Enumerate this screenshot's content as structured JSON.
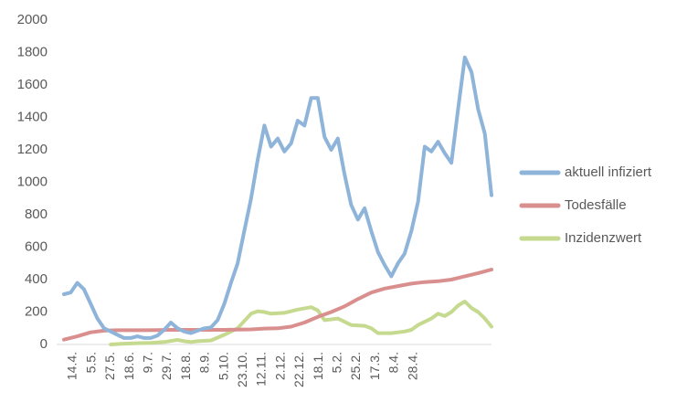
{
  "chart_data": {
    "type": "line",
    "ylim": [
      0,
      2000
    ],
    "yticks": [
      0,
      200,
      400,
      600,
      800,
      1000,
      1200,
      1400,
      1600,
      1800,
      2000
    ],
    "grid": false,
    "legend_position": "right",
    "x_tick_labels": [
      "14.4.",
      "5.5.",
      "27.5.",
      "18.6.",
      "9.7.",
      "29.7.",
      "18.8.",
      "8.9.",
      "5.10.",
      "23.10.",
      "12.11.",
      "2.12.",
      "22.12.",
      "18.1.",
      "5.2.",
      "25.2.",
      "17.3.",
      "8.4.",
      "28.4."
    ],
    "series": [
      {
        "name": "aktuell infiziert",
        "color": "#8fb4d9",
        "points": [
          [
            0,
            310
          ],
          [
            1,
            320
          ],
          [
            2,
            380
          ],
          [
            3,
            340
          ],
          [
            4,
            250
          ],
          [
            5,
            160
          ],
          [
            6,
            100
          ],
          [
            7,
            80
          ],
          [
            8,
            60
          ],
          [
            9,
            40
          ],
          [
            10,
            40
          ],
          [
            11,
            50
          ],
          [
            12,
            40
          ],
          [
            13,
            40
          ],
          [
            14,
            55
          ],
          [
            15,
            90
          ],
          [
            16,
            135
          ],
          [
            17,
            100
          ],
          [
            18,
            80
          ],
          [
            19,
            70
          ],
          [
            20,
            85
          ],
          [
            21,
            100
          ],
          [
            22,
            105
          ],
          [
            23,
            150
          ],
          [
            24,
            250
          ],
          [
            25,
            380
          ],
          [
            26,
            500
          ],
          [
            27,
            700
          ],
          [
            28,
            900
          ],
          [
            29,
            1140
          ],
          [
            30,
            1350
          ],
          [
            31,
            1220
          ],
          [
            32,
            1270
          ],
          [
            33,
            1190
          ],
          [
            34,
            1240
          ],
          [
            35,
            1380
          ],
          [
            36,
            1350
          ],
          [
            37,
            1520
          ],
          [
            38,
            1520
          ],
          [
            39,
            1280
          ],
          [
            40,
            1200
          ],
          [
            41,
            1270
          ],
          [
            42,
            1050
          ],
          [
            43,
            860
          ],
          [
            44,
            770
          ],
          [
            45,
            840
          ],
          [
            46,
            700
          ],
          [
            47,
            570
          ],
          [
            48,
            490
          ],
          [
            49,
            420
          ],
          [
            50,
            500
          ],
          [
            51,
            560
          ],
          [
            52,
            700
          ],
          [
            53,
            880
          ],
          [
            54,
            1220
          ],
          [
            55,
            1190
          ],
          [
            56,
            1250
          ],
          [
            57,
            1180
          ],
          [
            58,
            1120
          ],
          [
            59,
            1450
          ],
          [
            60,
            1770
          ],
          [
            61,
            1680
          ],
          [
            62,
            1450
          ],
          [
            63,
            1300
          ],
          [
            64,
            920
          ]
        ]
      },
      {
        "name": "Todesfälle",
        "color": "#da8f8f",
        "points": [
          [
            0,
            30
          ],
          [
            2,
            50
          ],
          [
            4,
            75
          ],
          [
            6,
            85
          ],
          [
            8,
            88
          ],
          [
            10,
            88
          ],
          [
            12,
            88
          ],
          [
            14,
            89
          ],
          [
            16,
            90
          ],
          [
            18,
            90
          ],
          [
            20,
            90
          ],
          [
            22,
            90
          ],
          [
            24,
            90
          ],
          [
            26,
            92
          ],
          [
            28,
            93
          ],
          [
            30,
            98
          ],
          [
            32,
            100
          ],
          [
            34,
            110
          ],
          [
            36,
            135
          ],
          [
            38,
            170
          ],
          [
            40,
            200
          ],
          [
            42,
            235
          ],
          [
            44,
            280
          ],
          [
            46,
            320
          ],
          [
            48,
            345
          ],
          [
            50,
            360
          ],
          [
            52,
            375
          ],
          [
            54,
            385
          ],
          [
            56,
            390
          ],
          [
            58,
            400
          ],
          [
            60,
            420
          ],
          [
            62,
            440
          ],
          [
            64,
            462
          ]
        ]
      },
      {
        "name": "Inzidenzwert",
        "color": "#c5d98f",
        "points": [
          [
            7,
            0
          ],
          [
            9,
            5
          ],
          [
            11,
            8
          ],
          [
            13,
            10
          ],
          [
            15,
            15
          ],
          [
            17,
            28
          ],
          [
            18,
            20
          ],
          [
            19,
            15
          ],
          [
            20,
            20
          ],
          [
            22,
            25
          ],
          [
            24,
            60
          ],
          [
            26,
            100
          ],
          [
            28,
            190
          ],
          [
            29,
            205
          ],
          [
            30,
            200
          ],
          [
            31,
            190
          ],
          [
            33,
            195
          ],
          [
            35,
            215
          ],
          [
            37,
            230
          ],
          [
            38,
            210
          ],
          [
            39,
            150
          ],
          [
            41,
            160
          ],
          [
            43,
            120
          ],
          [
            45,
            115
          ],
          [
            46,
            100
          ],
          [
            47,
            70
          ],
          [
            49,
            70
          ],
          [
            51,
            80
          ],
          [
            52,
            90
          ],
          [
            53,
            120
          ],
          [
            55,
            160
          ],
          [
            56,
            190
          ],
          [
            57,
            175
          ],
          [
            58,
            200
          ],
          [
            59,
            240
          ],
          [
            60,
            265
          ],
          [
            61,
            225
          ],
          [
            62,
            200
          ],
          [
            63,
            160
          ],
          [
            64,
            110
          ]
        ]
      }
    ]
  }
}
